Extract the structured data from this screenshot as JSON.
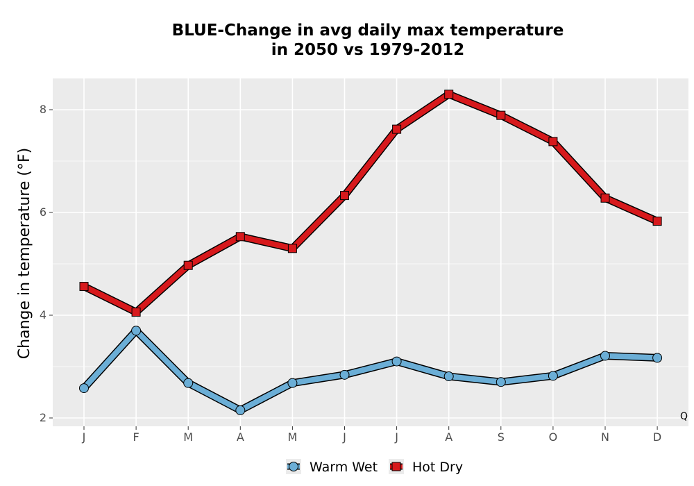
{
  "chart_data": {
    "type": "line",
    "title_line1": "BLUE-Change in avg daily max temperature",
    "title_line2": "in 2050 vs 1979-2012",
    "xlabel": "",
    "ylabel": "Change in temperature (°F)",
    "categories": [
      "J",
      "F",
      "M",
      "A",
      "M",
      "J",
      "J",
      "A",
      "S",
      "O",
      "N",
      "D"
    ],
    "ylim": [
      1.85,
      8.6
    ],
    "yticks": [
      2,
      4,
      6,
      8
    ],
    "grid": true,
    "legend_position": "bottom",
    "annotation": "Q",
    "series": [
      {
        "name": "Warm Wet",
        "color": "#6baed6",
        "marker": "circle",
        "values": [
          2.58,
          3.7,
          2.68,
          2.15,
          2.68,
          2.84,
          3.1,
          2.81,
          2.7,
          2.82,
          3.21,
          3.17
        ]
      },
      {
        "name": "Hot Dry",
        "color": "#d7191c",
        "marker": "square",
        "values": [
          4.56,
          4.06,
          4.97,
          5.53,
          5.3,
          6.33,
          7.62,
          8.3,
          7.89,
          7.38,
          6.28,
          5.83
        ]
      }
    ]
  }
}
